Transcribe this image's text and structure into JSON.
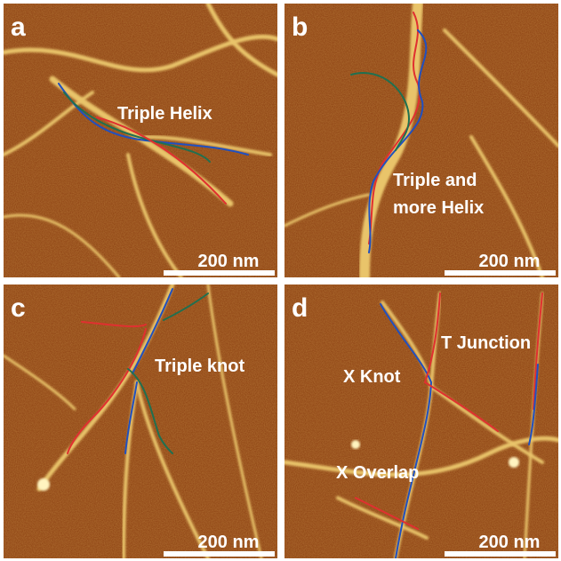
{
  "panels": [
    {
      "label": "a",
      "annotations": [
        [
          "Triple Helix"
        ]
      ],
      "scale_bar": "200 nm"
    },
    {
      "label": "b",
      "annotations": [
        [
          "Triple and",
          "more Helix"
        ]
      ],
      "scale_bar": "200 nm"
    },
    {
      "label": "c",
      "annotations": [
        [
          "Triple knot"
        ]
      ],
      "scale_bar": "200 nm"
    },
    {
      "label": "d",
      "annotations": [
        [
          "T Junction"
        ],
        [
          "X Knot"
        ],
        [
          "X Overlap"
        ]
      ],
      "scale_bar": "200 nm"
    }
  ]
}
